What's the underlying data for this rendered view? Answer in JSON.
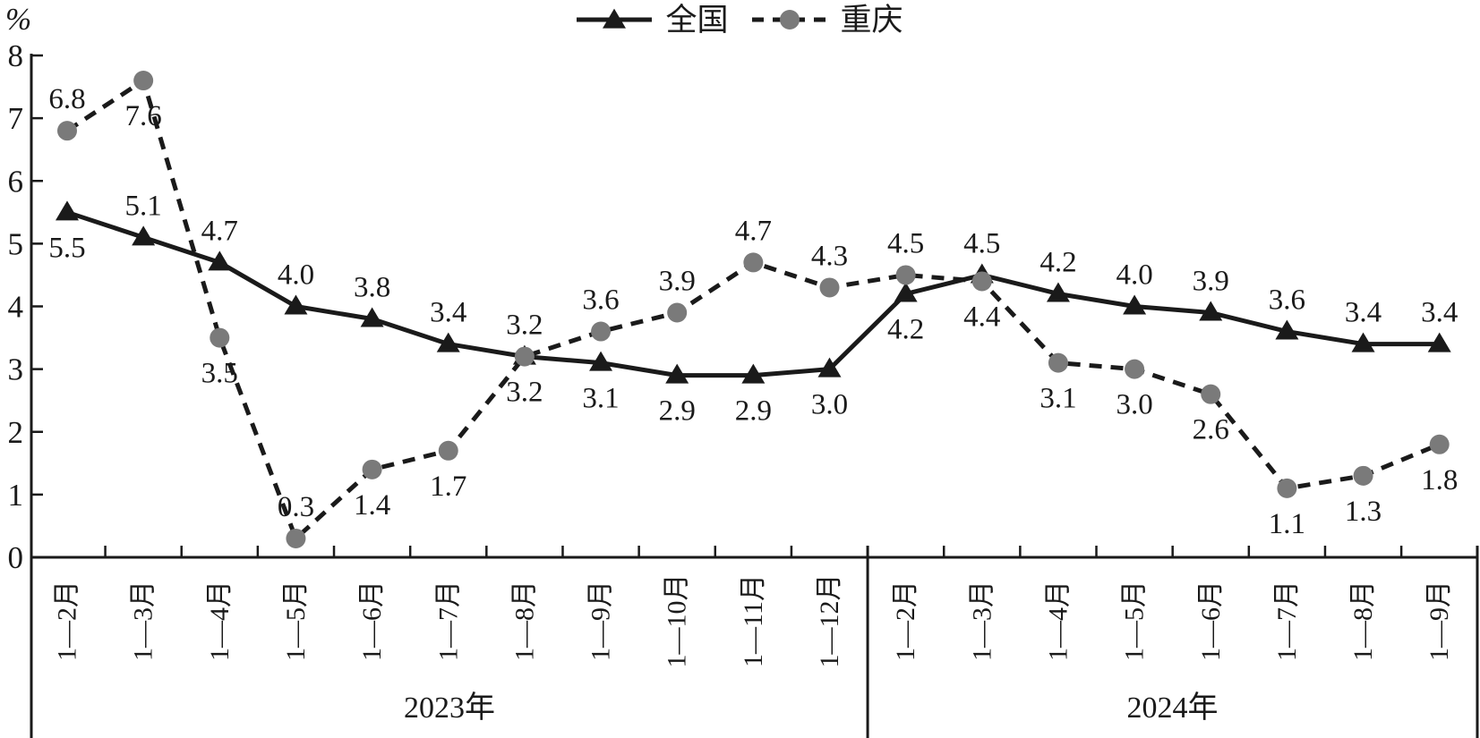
{
  "chart_data": {
    "type": "line",
    "title": "",
    "ylabel": "%",
    "xlabel": "",
    "ylim": [
      0,
      8
    ],
    "yticks": [
      0,
      1,
      2,
      3,
      4,
      5,
      6,
      7,
      8
    ],
    "grid": false,
    "legend_position": "top-center",
    "categories": [
      "1—2月",
      "1—3月",
      "1—4月",
      "1—5月",
      "1—6月",
      "1—7月",
      "1—8月",
      "1—9月",
      "1—10月",
      "1—11月",
      "1—12月",
      "1—2月",
      "1—3月",
      "1—4月",
      "1—5月",
      "1—6月",
      "1—7月",
      "1—8月",
      "1—9月"
    ],
    "x_groups": [
      {
        "label": "2023年",
        "span": 11
      },
      {
        "label": "2024年",
        "span": 8
      }
    ],
    "series": [
      {
        "name": "全国",
        "line_style": "solid",
        "marker": "triangle",
        "color": "#1a1a1a",
        "values": [
          5.5,
          5.1,
          4.7,
          4.0,
          3.8,
          3.4,
          3.2,
          3.1,
          2.9,
          2.9,
          3.0,
          4.2,
          4.5,
          4.2,
          4.0,
          3.9,
          3.6,
          3.4,
          3.4
        ],
        "label_side": [
          "below",
          "above",
          "above",
          "above",
          "above",
          "above",
          "above",
          "below",
          "below",
          "below",
          "below",
          "below",
          "above",
          "above",
          "above",
          "above",
          "above",
          "above",
          "above"
        ]
      },
      {
        "name": "重庆",
        "line_style": "dashed",
        "marker": "circle",
        "color": "#1a1a1a",
        "marker_color": "#7a7a7a",
        "values": [
          6.8,
          7.6,
          3.5,
          0.3,
          1.4,
          1.7,
          3.2,
          3.6,
          3.9,
          4.7,
          4.3,
          4.5,
          4.4,
          3.1,
          3.0,
          2.6,
          1.1,
          1.3,
          1.8
        ],
        "label_side": [
          "above",
          "below",
          "below",
          "above",
          "below",
          "below",
          "below",
          "above",
          "above",
          "above",
          "above",
          "above",
          "below",
          "below",
          "below",
          "below",
          "below",
          "below",
          "below"
        ]
      }
    ]
  }
}
